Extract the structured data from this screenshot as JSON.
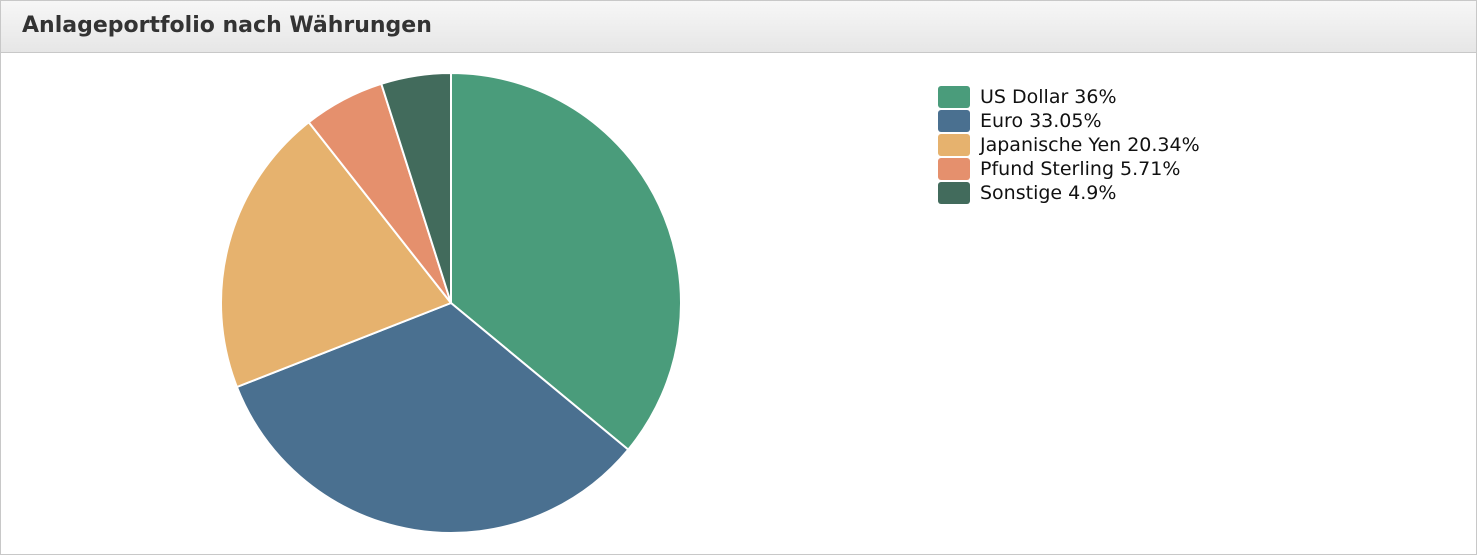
{
  "chart_data": {
    "type": "pie",
    "title": "Anlageportfolio nach Währungen",
    "categories": [
      "US Dollar",
      "Euro",
      "Japanische Yen",
      "Pfund Sterling",
      "Sonstige"
    ],
    "values": [
      36,
      33.05,
      20.34,
      5.71,
      4.9
    ],
    "value_labels": [
      "36%",
      "33.05%",
      "20.34%",
      "5.71%",
      "4.9%"
    ],
    "colors": [
      "#4a9c7b",
      "#4a7090",
      "#e6b26e",
      "#e5906d",
      "#426b5c"
    ],
    "legend": "top-right"
  }
}
